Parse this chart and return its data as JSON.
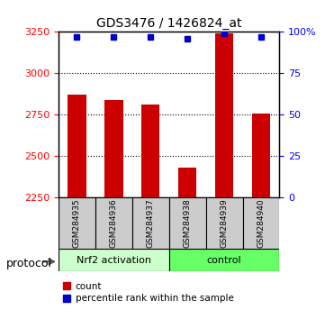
{
  "title": "GDS3476 / 1426824_at",
  "samples": [
    "GSM284935",
    "GSM284936",
    "GSM284937",
    "GSM284938",
    "GSM284939",
    "GSM284940"
  ],
  "counts": [
    2870,
    2840,
    2810,
    2430,
    3240,
    2760
  ],
  "percentile_ranks": [
    97,
    97,
    97,
    96,
    99,
    97
  ],
  "ylim_left": [
    2250,
    3250
  ],
  "ylim_right": [
    0,
    100
  ],
  "yticks_left": [
    2250,
    2500,
    2750,
    3000,
    3250
  ],
  "yticks_right": [
    0,
    25,
    50,
    75,
    100
  ],
  "right_tick_labels": [
    "0",
    "25",
    "50",
    "75",
    "100%"
  ],
  "bar_color": "#cc0000",
  "dot_color": "#0000cc",
  "bar_bottom": 2250,
  "groups": [
    {
      "label": "Nrf2 activation",
      "start": 0,
      "end": 3,
      "color": "#ccffcc"
    },
    {
      "label": "control",
      "start": 3,
      "end": 6,
      "color": "#66ff66"
    }
  ],
  "protocol_label": "protocol",
  "grid_color": "#000000",
  "background_color": "#ffffff",
  "plot_bg": "#ffffff",
  "sample_box_color": "#cccccc"
}
